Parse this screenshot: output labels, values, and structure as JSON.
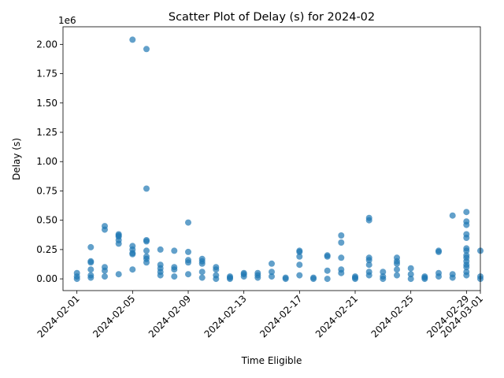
{
  "chart_data": {
    "type": "scatter",
    "title": "Scatter Plot of Delay (s) for 2024-02",
    "xlabel": "Time Eligible",
    "ylabel": "Delay (s)",
    "y_offset_label": "1e6",
    "xlim": [
      "2024-01-31",
      "2024-03-01"
    ],
    "ylim": [
      -0.1,
      2.15
    ],
    "grid": false,
    "point_color": "#1f77b4",
    "x_ticks": [
      "2024-02-01",
      "2024-02-05",
      "2024-02-09",
      "2024-02-13",
      "2024-02-17",
      "2024-02-21",
      "2024-02-25",
      "2024-02-29",
      "2024-03-01"
    ],
    "y_ticks": [
      "0.00",
      "0.25",
      "0.50",
      "0.75",
      "1.00",
      "1.25",
      "1.50",
      "1.75",
      "2.00"
    ],
    "points": [
      [
        "2024-02-01",
        0.0
      ],
      [
        "2024-02-01",
        0.05
      ],
      [
        "2024-02-01",
        0.02
      ],
      [
        "2024-02-02",
        0.01
      ],
      [
        "2024-02-02",
        0.03
      ],
      [
        "2024-02-02",
        0.08
      ],
      [
        "2024-02-02",
        0.15
      ],
      [
        "2024-02-02",
        0.27
      ],
      [
        "2024-02-02",
        0.14
      ],
      [
        "2024-02-03",
        0.1
      ],
      [
        "2024-02-03",
        0.07
      ],
      [
        "2024-02-03",
        0.02
      ],
      [
        "2024-02-03",
        0.45
      ],
      [
        "2024-02-03",
        0.42
      ],
      [
        "2024-02-04",
        0.38
      ],
      [
        "2024-02-04",
        0.36
      ],
      [
        "2024-02-04",
        0.04
      ],
      [
        "2024-02-04",
        0.37
      ],
      [
        "2024-02-04",
        0.33
      ],
      [
        "2024-02-04",
        0.3
      ],
      [
        "2024-02-05",
        0.28
      ],
      [
        "2024-02-05",
        0.25
      ],
      [
        "2024-02-05",
        0.22
      ],
      [
        "2024-02-05",
        2.04
      ],
      [
        "2024-02-05",
        0.08
      ],
      [
        "2024-02-05",
        0.21
      ],
      [
        "2024-02-06",
        0.19
      ],
      [
        "2024-02-06",
        1.96
      ],
      [
        "2024-02-06",
        0.77
      ],
      [
        "2024-02-06",
        0.33
      ],
      [
        "2024-02-06",
        0.32
      ],
      [
        "2024-02-06",
        0.24
      ],
      [
        "2024-02-06",
        0.17
      ],
      [
        "2024-02-06",
        0.14
      ],
      [
        "2024-02-07",
        0.12
      ],
      [
        "2024-02-07",
        0.09
      ],
      [
        "2024-02-07",
        0.06
      ],
      [
        "2024-02-07",
        0.03
      ],
      [
        "2024-02-07",
        0.25
      ],
      [
        "2024-02-08",
        0.24
      ],
      [
        "2024-02-08",
        0.1
      ],
      [
        "2024-02-08",
        0.08
      ],
      [
        "2024-02-08",
        0.02
      ],
      [
        "2024-02-09",
        0.23
      ],
      [
        "2024-02-09",
        0.16
      ],
      [
        "2024-02-09",
        0.14
      ],
      [
        "2024-02-09",
        0.48
      ],
      [
        "2024-02-09",
        0.04
      ],
      [
        "2024-02-10",
        0.17
      ],
      [
        "2024-02-10",
        0.15
      ],
      [
        "2024-02-10",
        0.13
      ],
      [
        "2024-02-10",
        0.01
      ],
      [
        "2024-02-10",
        0.06
      ],
      [
        "2024-02-11",
        0.1
      ],
      [
        "2024-02-11",
        0.08
      ],
      [
        "2024-02-11",
        0.03
      ],
      [
        "2024-02-11",
        0.0
      ],
      [
        "2024-02-12",
        0.01
      ],
      [
        "2024-02-12",
        0.0
      ],
      [
        "2024-02-12",
        0.02
      ],
      [
        "2024-02-13",
        0.04
      ],
      [
        "2024-02-13",
        0.05
      ],
      [
        "2024-02-13",
        0.02
      ],
      [
        "2024-02-14",
        0.05
      ],
      [
        "2024-02-14",
        0.03
      ],
      [
        "2024-02-14",
        0.01
      ],
      [
        "2024-02-15",
        0.06
      ],
      [
        "2024-02-15",
        0.13
      ],
      [
        "2024-02-15",
        0.02
      ],
      [
        "2024-02-16",
        0.0
      ],
      [
        "2024-02-16",
        0.01
      ],
      [
        "2024-02-17",
        0.24
      ],
      [
        "2024-02-17",
        0.23
      ],
      [
        "2024-02-17",
        0.19
      ],
      [
        "2024-02-17",
        0.12
      ],
      [
        "2024-02-17",
        0.03
      ],
      [
        "2024-02-18",
        0.0
      ],
      [
        "2024-02-18",
        0.01
      ],
      [
        "2024-02-19",
        0.0
      ],
      [
        "2024-02-19",
        0.07
      ],
      [
        "2024-02-19",
        0.2
      ],
      [
        "2024-02-19",
        0.19
      ],
      [
        "2024-02-20",
        0.18
      ],
      [
        "2024-02-20",
        0.37
      ],
      [
        "2024-02-20",
        0.08
      ],
      [
        "2024-02-20",
        0.05
      ],
      [
        "2024-02-20",
        0.31
      ],
      [
        "2024-02-21",
        0.02
      ],
      [
        "2024-02-21",
        0.0
      ],
      [
        "2024-02-21",
        0.01
      ],
      [
        "2024-02-22",
        0.52
      ],
      [
        "2024-02-22",
        0.5
      ],
      [
        "2024-02-22",
        0.18
      ],
      [
        "2024-02-22",
        0.16
      ],
      [
        "2024-02-22",
        0.12
      ],
      [
        "2024-02-22",
        0.06
      ],
      [
        "2024-02-22",
        0.03
      ],
      [
        "2024-02-23",
        0.0
      ],
      [
        "2024-02-23",
        0.06
      ],
      [
        "2024-02-23",
        0.02
      ],
      [
        "2024-02-24",
        0.18
      ],
      [
        "2024-02-24",
        0.15
      ],
      [
        "2024-02-24",
        0.13
      ],
      [
        "2024-02-24",
        0.08
      ],
      [
        "2024-02-24",
        0.03
      ],
      [
        "2024-02-25",
        0.09
      ],
      [
        "2024-02-25",
        0.04
      ],
      [
        "2024-02-25",
        0.0
      ],
      [
        "2024-02-26",
        0.01
      ],
      [
        "2024-02-26",
        0.02
      ],
      [
        "2024-02-26",
        0.0
      ],
      [
        "2024-02-27",
        0.24
      ],
      [
        "2024-02-27",
        0.23
      ],
      [
        "2024-02-27",
        0.05
      ],
      [
        "2024-02-27",
        0.02
      ],
      [
        "2024-02-28",
        0.04
      ],
      [
        "2024-02-28",
        0.01
      ],
      [
        "2024-02-28",
        0.54
      ],
      [
        "2024-02-29",
        0.18
      ],
      [
        "2024-02-29",
        0.12
      ],
      [
        "2024-02-29",
        0.06
      ],
      [
        "2024-02-29",
        0.03
      ],
      [
        "2024-02-29",
        0.57
      ],
      [
        "2024-02-29",
        0.49
      ],
      [
        "2024-02-29",
        0.46
      ],
      [
        "2024-02-29",
        0.38
      ],
      [
        "2024-02-29",
        0.35
      ],
      [
        "2024-02-29",
        0.26
      ],
      [
        "2024-02-29",
        0.24
      ],
      [
        "2024-02-29",
        0.2
      ],
      [
        "2024-02-29",
        0.15
      ],
      [
        "2024-02-29",
        0.1
      ],
      [
        "2024-03-01",
        0.24
      ],
      [
        "2024-03-01",
        0.02
      ],
      [
        "2024-03-01",
        0.0
      ]
    ]
  }
}
